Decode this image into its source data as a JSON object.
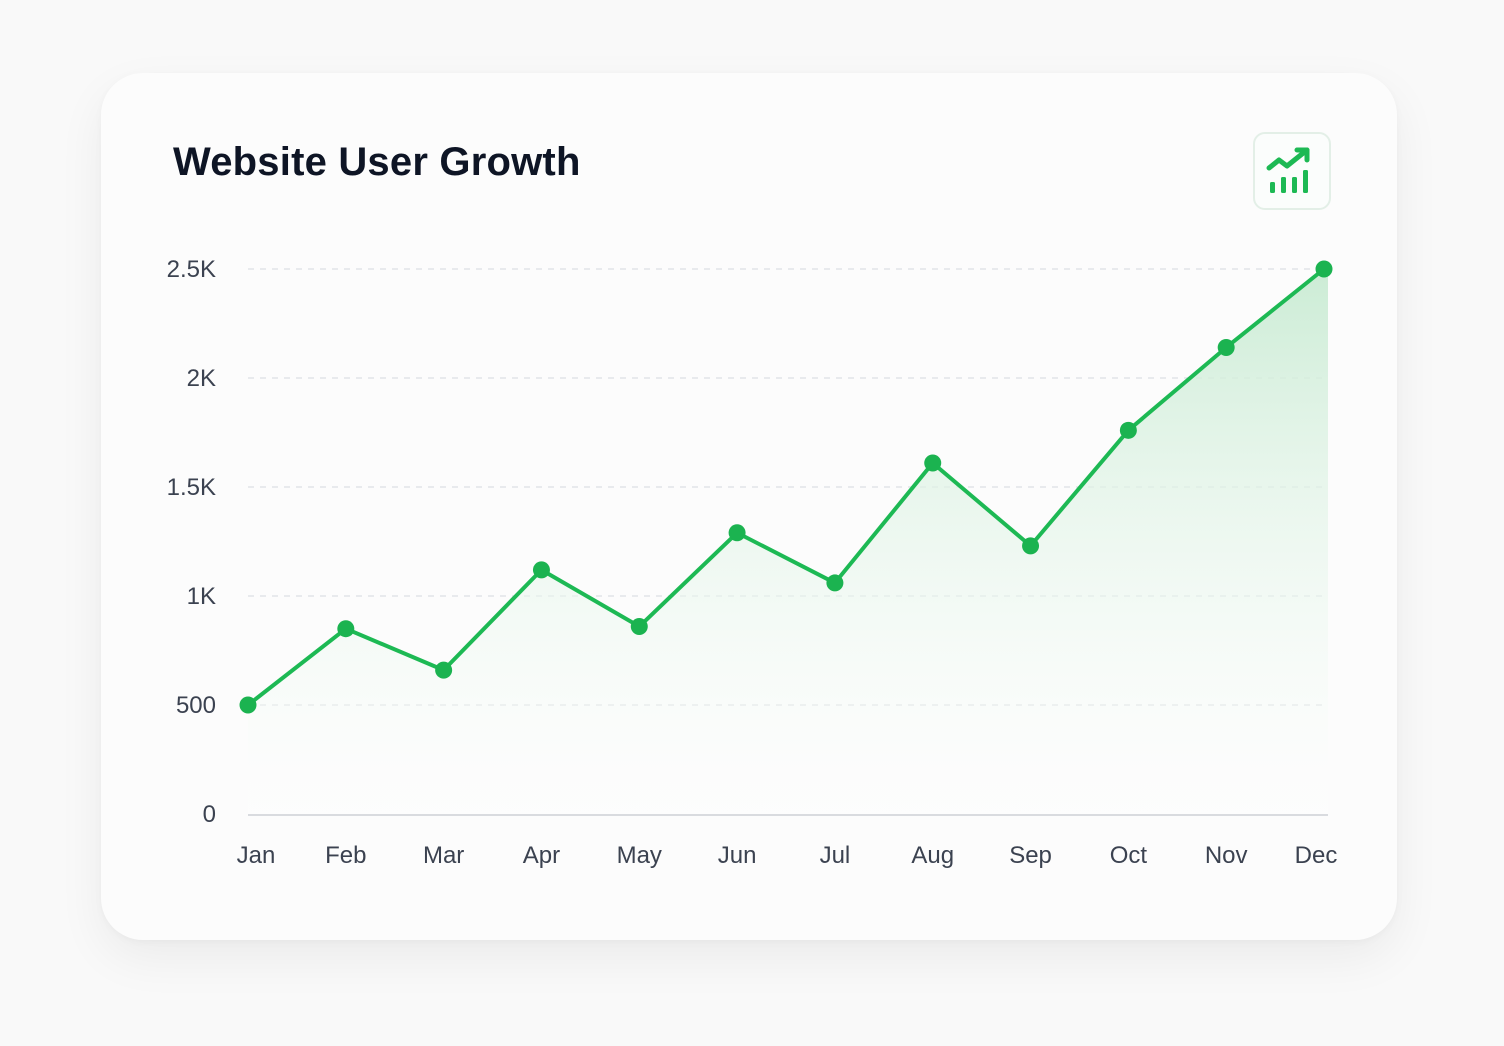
{
  "colors": {
    "line": "#1db954",
    "point": "#1bb350",
    "fill_top": "#c9ebd3",
    "grid": "#e2e4e8",
    "axis": "#d9dbdf",
    "tick_text": "#3b4250",
    "title": "#0e1525",
    "icon": "#1db954"
  },
  "header": {
    "title": "Website User Growth",
    "icon": "trending-up-chart-icon"
  },
  "chart_data": {
    "type": "area",
    "title": "Website User Growth",
    "xlabel": "",
    "ylabel": "",
    "categories": [
      "Jan",
      "Feb",
      "Mar",
      "Apr",
      "May",
      "Jun",
      "Jul",
      "Aug",
      "Sep",
      "Oct",
      "Nov",
      "Dec"
    ],
    "series": [
      {
        "values": [
          500,
          850,
          660,
          1120,
          860,
          1290,
          1060,
          1610,
          1230,
          1760,
          2140,
          2500
        ]
      }
    ],
    "ylim": [
      0,
      2500
    ],
    "yticks": [
      0,
      500,
      1000,
      1500,
      2000,
      2500
    ],
    "ytick_labels": [
      "0",
      "500",
      "1K",
      "1.5K",
      "2K",
      "2.5K"
    ],
    "grid": "horizontal-dashed",
    "legend": "none",
    "markers": true
  }
}
